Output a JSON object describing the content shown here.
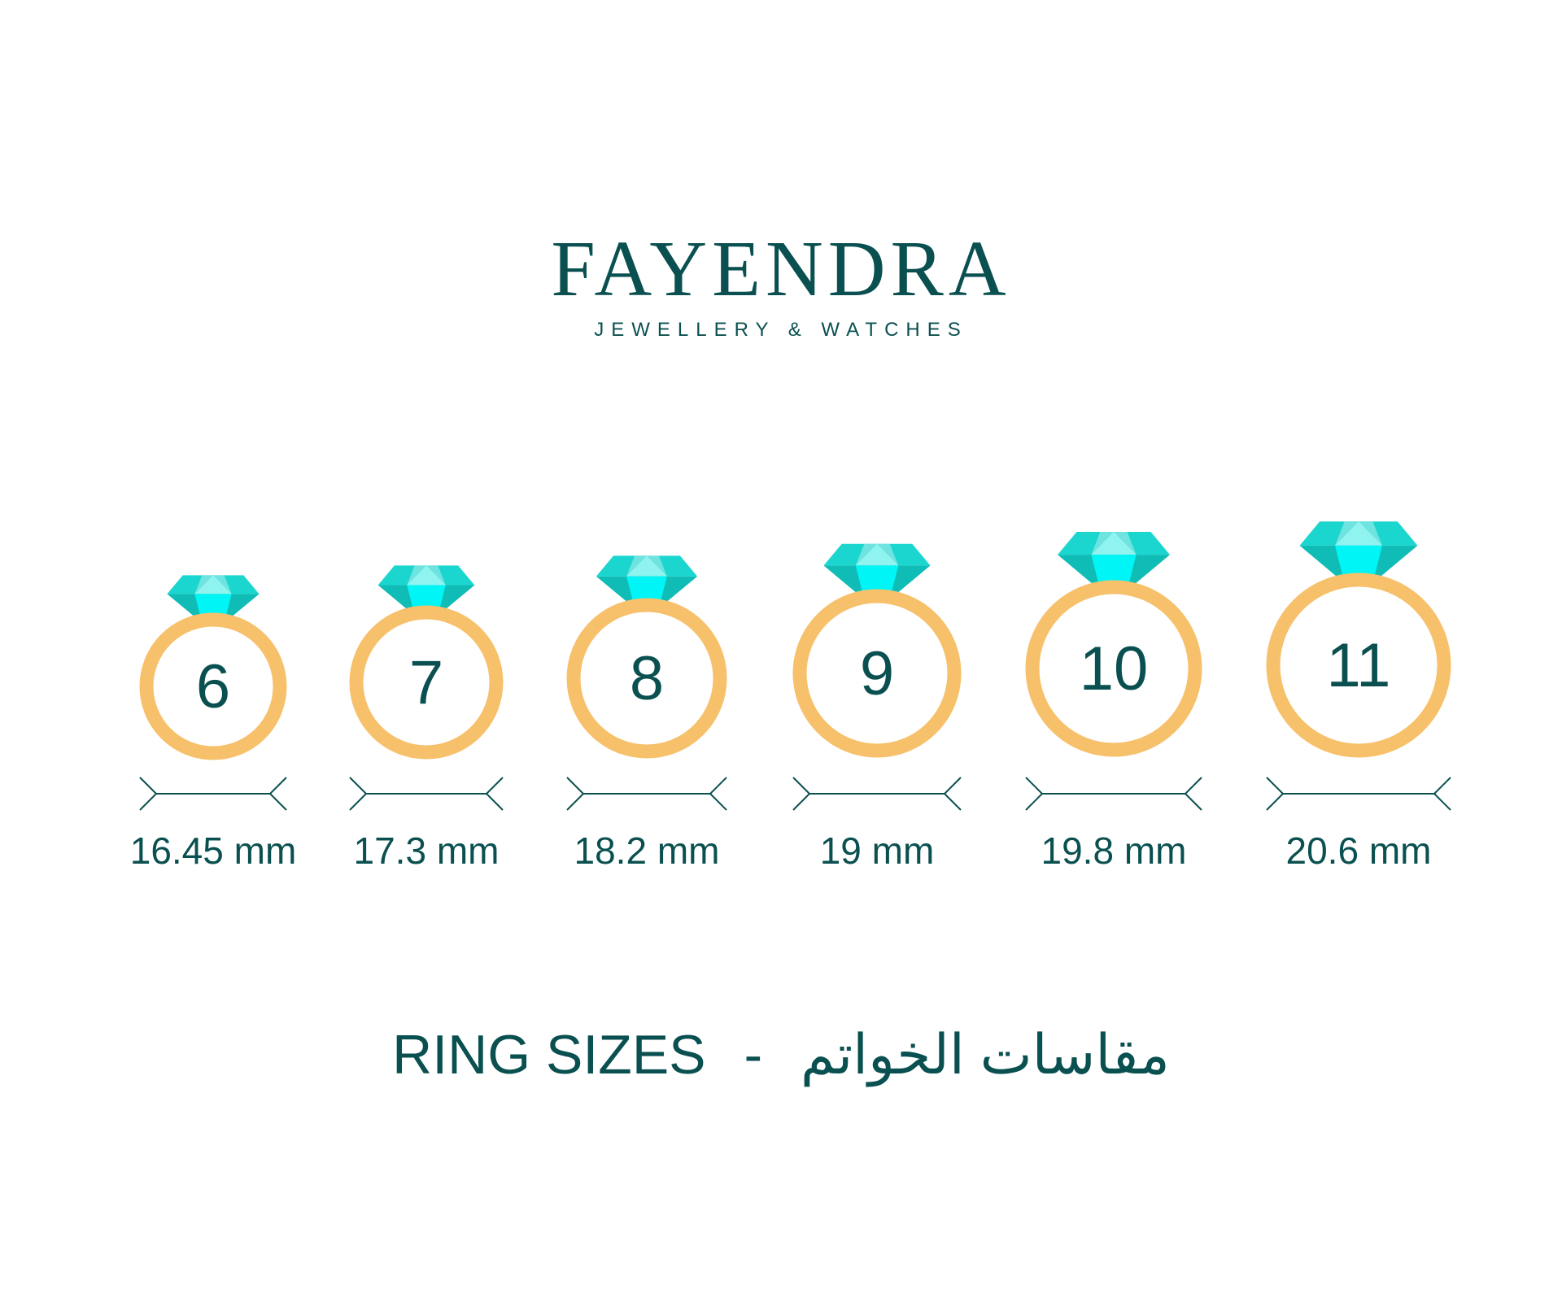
{
  "brand": {
    "name": "FAYENDRA",
    "tagline": "JEWELLERY & WATCHES"
  },
  "colors": {
    "text": "#0b5050",
    "ring": "#f7c06a",
    "gem_light": "#00f6f6",
    "gem_mid": "#1ad6cf",
    "gem_dark": "#0fbdb6",
    "gem_pale": "#6fe3df"
  },
  "rings": [
    {
      "size": "6",
      "diameter": "16.45 mm"
    },
    {
      "size": "7",
      "diameter": "17.3 mm"
    },
    {
      "size": "8",
      "diameter": "18.2 mm"
    },
    {
      "size": "9",
      "diameter": "19 mm"
    },
    {
      "size": "10",
      "diameter": "19.8 mm"
    },
    {
      "size": "11",
      "diameter": "20.6 mm"
    }
  ],
  "footer": {
    "title_en": "RING SIZES",
    "separator": "-",
    "title_ar": "مقاسات الخواتم"
  }
}
